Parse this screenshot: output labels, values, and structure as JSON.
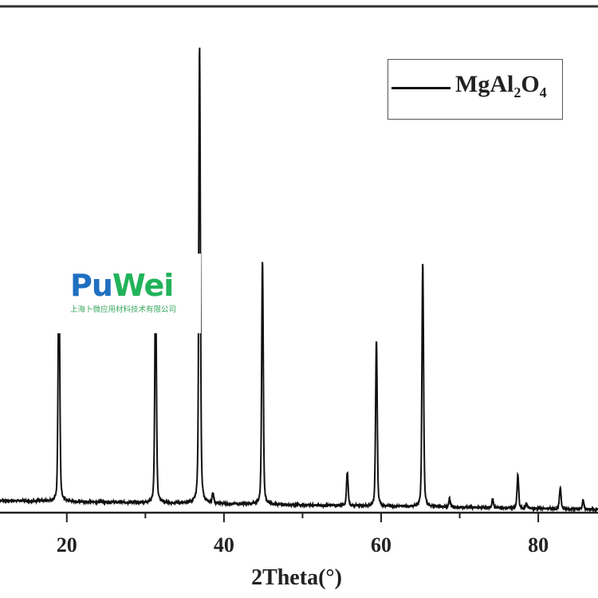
{
  "chart_data": {
    "type": "line",
    "title": "",
    "xlabel": "2Theta(°)",
    "ylabel": "",
    "xlim": [
      11.5,
      87.6
    ],
    "ylim": [
      0,
      108
    ],
    "xticks_major": [
      20,
      40,
      60,
      80
    ],
    "xtick_labels": [
      "20",
      "40",
      "60",
      "80"
    ],
    "xticks_minor": [
      30,
      50,
      70
    ],
    "grid": false,
    "legend": {
      "placement": "top-right",
      "entries": [
        "MgAl2O4"
      ]
    },
    "series": [
      {
        "name": "MgAl2O4",
        "color": "#111111",
        "background": {
          "x": [
            11.5,
            87.6
          ],
          "y": [
            2.6,
            0.7
          ]
        },
        "peaks": [
          {
            "x": 19.0,
            "height": 52
          },
          {
            "x": 31.3,
            "height": 50
          },
          {
            "x": 36.9,
            "height": 98
          },
          {
            "x": 38.6,
            "height": 2.2
          },
          {
            "x": 44.9,
            "height": 52
          },
          {
            "x": 55.7,
            "height": 7.2
          },
          {
            "x": 59.4,
            "height": 35.5
          },
          {
            "x": 65.3,
            "height": 52
          },
          {
            "x": 68.7,
            "height": 1.8
          },
          {
            "x": 74.2,
            "height": 1.9
          },
          {
            "x": 77.4,
            "height": 7.1
          },
          {
            "x": 78.5,
            "height": 1.0
          },
          {
            "x": 82.8,
            "height": 4.6
          },
          {
            "x": 85.7,
            "height": 1.9
          }
        ]
      }
    ]
  },
  "legend": {
    "label_main": "MgAl",
    "sub1": "2",
    "label_mid": "O",
    "sub2": "4"
  },
  "watermark": {
    "word_a": "Pu",
    "word_b": "Wei",
    "company": "上海卜微应用材料技术有限公司",
    "color_a": "#1f6fc0",
    "color_b": "#22b35a"
  }
}
